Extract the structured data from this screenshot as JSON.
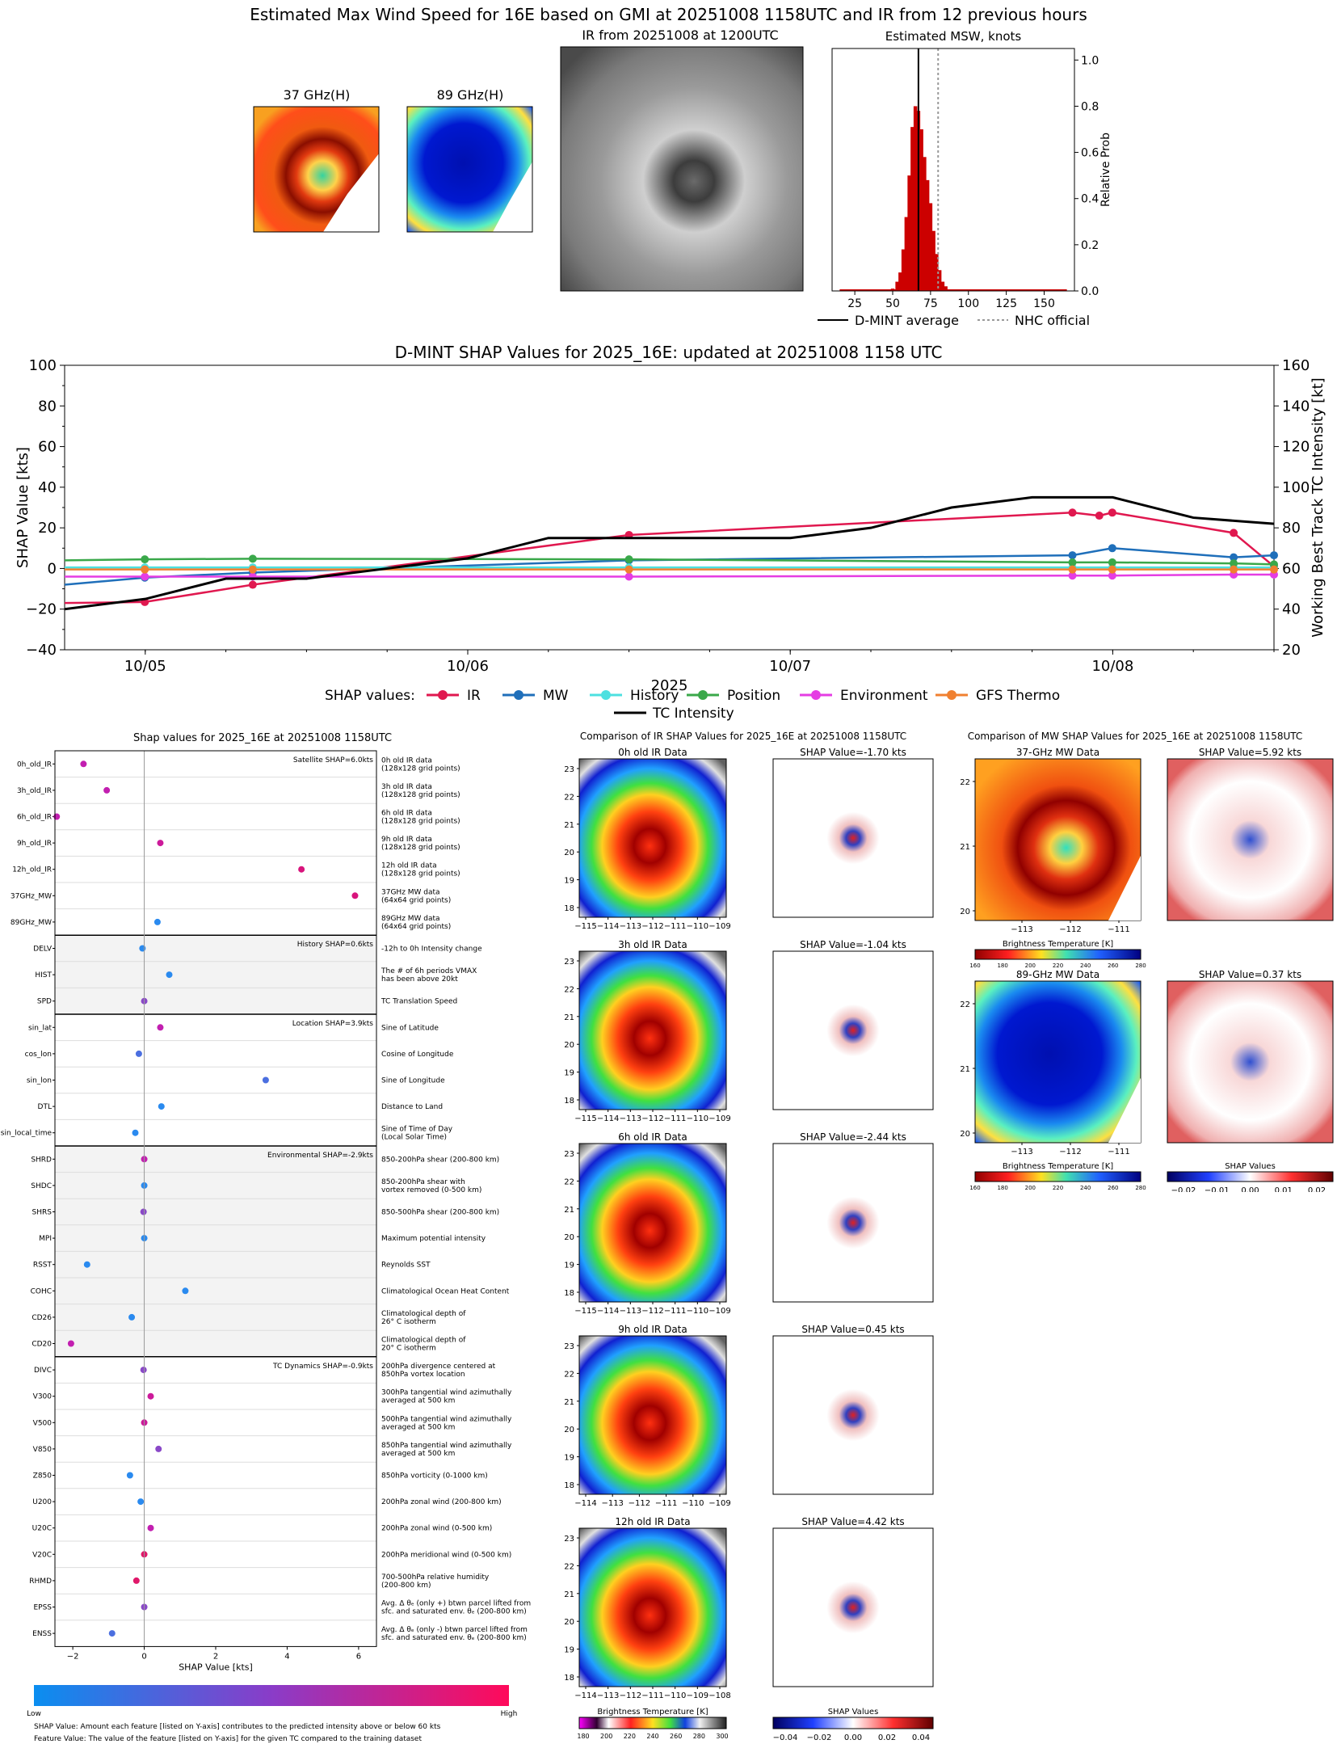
{
  "page": {
    "main_title": "Estimated Max Wind Speed for 16E based on GMI at 20251008 1158UTC and IR from 12 previous hours"
  },
  "top_panels": {
    "mw37_title": "37 GHz(H)",
    "mw89_title": "89 GHz(H)",
    "ir_title": "IR from 20251008 at 1200UTC",
    "hist_title": "Estimated MSW, knots",
    "hist_ylabel": "Relative Prob",
    "hist_xticks": [
      "25",
      "50",
      "75",
      "100",
      "125",
      "150"
    ],
    "hist_yticks": [
      "0.0",
      "0.2",
      "0.4",
      "0.6",
      "0.8",
      "1.0"
    ],
    "legend": [
      "D-MINT average",
      "NHC official"
    ]
  },
  "chart_data": [
    {
      "type": "bar",
      "title": "Estimated MSW, knots",
      "ylabel": "Relative Prob",
      "xlim": [
        10,
        170
      ],
      "ylim": [
        0,
        1.05
      ],
      "bins": [
        {
          "x": 50,
          "v": 0.01
        },
        {
          "x": 53,
          "v": 0.04
        },
        {
          "x": 55,
          "v": 0.08
        },
        {
          "x": 57,
          "v": 0.18
        },
        {
          "x": 59,
          "v": 0.32
        },
        {
          "x": 61,
          "v": 0.5
        },
        {
          "x": 63,
          "v": 0.71
        },
        {
          "x": 65,
          "v": 0.8
        },
        {
          "x": 67,
          "v": 0.78
        },
        {
          "x": 69,
          "v": 0.7
        },
        {
          "x": 71,
          "v": 0.58
        },
        {
          "x": 73,
          "v": 0.48
        },
        {
          "x": 75,
          "v": 0.38
        },
        {
          "x": 77,
          "v": 0.26
        },
        {
          "x": 79,
          "v": 0.16
        },
        {
          "x": 81,
          "v": 0.09
        },
        {
          "x": 83,
          "v": 0.04
        },
        {
          "x": 85,
          "v": 0.02
        }
      ],
      "dmint_average": 67,
      "nhc_official": 80
    },
    {
      "type": "line",
      "title": "D-MINT SHAP Values for 2025_16E: updated at 20251008 1158 UTC",
      "xlabel": "2025",
      "ylabel": "SHAP Value [kts]",
      "y2label": "Working Best Track TC Intensity [kt]",
      "xlim": [
        "2025-10-04 18:00",
        "2025-10-08 12:00"
      ],
      "ylim": [
        -40,
        100
      ],
      "y2lim": [
        20,
        160
      ],
      "xticks": [
        "10/05",
        "10/06",
        "10/07",
        "10/08"
      ],
      "yticks": [
        "−40",
        "−20",
        "0",
        "20",
        "40",
        "60",
        "80",
        "100"
      ],
      "y2ticks": [
        "20",
        "40",
        "60",
        "80",
        "100",
        "120",
        "140",
        "160"
      ],
      "series": [
        {
          "name": "IR",
          "color": "#e0184f",
          "x": [
            "10/04 18:00",
            "10/04 23:58",
            "10/05 08:00",
            "10/06 12:00",
            "10/07 21:00",
            "10/07 23:00",
            "10/07 23:58",
            "10/08 09:00",
            "10/08 12:00"
          ],
          "y": [
            -17,
            -16.5,
            -8,
            16.5,
            27.5,
            26,
            27.5,
            17.5,
            1
          ]
        },
        {
          "name": "MW",
          "color": "#1f6fba",
          "x": [
            "10/04 18:00",
            "10/04 23:58",
            "10/05 08:00",
            "10/06 12:00",
            "10/07 21:00",
            "10/07 23:58",
            "10/08 09:00",
            "10/08 12:00"
          ],
          "y": [
            -8,
            -4.5,
            -2,
            4,
            6.5,
            10,
            5.5,
            6.5
          ]
        },
        {
          "name": "History",
          "color": "#4de0e0",
          "x": [
            "10/04 18:00",
            "10/04 23:58",
            "10/05 08:00",
            "10/06 12:00",
            "10/07 21:00",
            "10/07 23:58",
            "10/08 09:00",
            "10/08 12:00"
          ],
          "y": [
            0.5,
            0.5,
            0.5,
            0.5,
            0.5,
            0.5,
            0.5,
            0.5
          ]
        },
        {
          "name": "Position",
          "color": "#3aa84a",
          "x": [
            "10/04 18:00",
            "10/04 23:58",
            "10/05 08:00",
            "10/06 12:00",
            "10/07 21:00",
            "10/07 23:58",
            "10/08 09:00",
            "10/08 12:00"
          ],
          "y": [
            4,
            4.5,
            4.8,
            4.5,
            3,
            3,
            2.5,
            2
          ]
        },
        {
          "name": "Environment",
          "color": "#e53de3",
          "x": [
            "10/04 18:00",
            "10/04 23:58",
            "10/05 08:00",
            "10/06 12:00",
            "10/07 21:00",
            "10/07 23:58",
            "10/08 09:00",
            "10/08 12:00"
          ],
          "y": [
            -4,
            -4,
            -4,
            -4,
            -3.5,
            -3.5,
            -3,
            -3
          ]
        },
        {
          "name": "GFS Thermo",
          "color": "#f08030",
          "x": [
            "10/04 18:00",
            "10/04 23:58",
            "10/05 08:00",
            "10/06 12:00",
            "10/07 21:00",
            "10/07 23:58",
            "10/08 09:00",
            "10/08 12:00"
          ],
          "y": [
            -0.5,
            -0.5,
            -0.5,
            -0.5,
            -0.5,
            -0.5,
            -0.5,
            -0.5
          ]
        },
        {
          "name": "TC Intensity",
          "color": "#000000",
          "axis": "right",
          "x": [
            "10/04 18:00",
            "10/05 00:00",
            "10/05 06:00",
            "10/05 12:00",
            "10/05 18:00",
            "10/06 00:00",
            "10/06 06:00",
            "10/06 12:00",
            "10/06 18:00",
            "10/07 00:00",
            "10/07 06:00",
            "10/07 12:00",
            "10/07 18:00",
            "10/08 00:00",
            "10/08 06:00",
            "10/08 12:00"
          ],
          "y": [
            40,
            45,
            55,
            55,
            60,
            65,
            75,
            75,
            75,
            75,
            80,
            90,
            95,
            95,
            85,
            82
          ]
        }
      ],
      "legend_prefix": "SHAP values:"
    },
    {
      "type": "scatter",
      "title": "Shap values for 2025_16E at 20251008 1158UTC",
      "xlabel": "SHAP Value [kts]",
      "xlim": [
        -2.5,
        6.5
      ],
      "xticks": [
        "−2",
        "0",
        "2",
        "4",
        "6"
      ],
      "groups": [
        {
          "label": "Satellite SHAP=6.0kts",
          "shaded": false,
          "rows": [
            {
              "name": "0h_old_IR",
              "desc": "0h old IR data\n(128x128 grid points)",
              "x": -1.7,
              "c": "#c21fb0"
            },
            {
              "name": "3h_old_IR",
              "desc": "3h old IR data\n(128x128 grid points)",
              "x": -1.05,
              "c": "#c21fb0"
            },
            {
              "name": "6h_old_IR",
              "desc": "6h old IR data\n(128x128 grid points)",
              "x": -2.45,
              "c": "#c21fb0"
            },
            {
              "name": "9h_old_IR",
              "desc": "9h old IR data\n(128x128 grid points)",
              "x": 0.45,
              "c": "#cc1a9a"
            },
            {
              "name": "12h_old_IR",
              "desc": "12h old IR data\n(128x128 grid points)",
              "x": 4.4,
              "c": "#d8147c"
            },
            {
              "name": "37GHz_MW",
              "desc": "37GHz MW data\n(64x64 grid points)",
              "x": 5.9,
              "c": "#d8147c"
            },
            {
              "name": "89GHz_MW",
              "desc": "89GHz MW data\n(64x64 grid points)",
              "x": 0.37,
              "c": "#2a8aef"
            }
          ]
        },
        {
          "label": "History SHAP=0.6kts",
          "shaded": true,
          "rows": [
            {
              "name": "DELV",
              "desc": "-12h to 0h Intensity change",
              "x": -0.05,
              "c": "#2a8aef"
            },
            {
              "name": "HIST",
              "desc": "The # of 6h periods VMAX\nhas been above 20kt",
              "x": 0.7,
              "c": "#2a8aef"
            },
            {
              "name": "SPD",
              "desc": "TC Translation Speed",
              "x": 0.0,
              "c": "#8a48c8"
            }
          ]
        },
        {
          "label": "Location SHAP=3.9kts",
          "shaded": false,
          "rows": [
            {
              "name": "sin_lat",
              "desc": "Sine of Latitude",
              "x": 0.45,
              "c": "#c21fb0"
            },
            {
              "name": "cos_lon",
              "desc": "Cosine of Longitude",
              "x": -0.15,
              "c": "#4b6fe0"
            },
            {
              "name": "sin_lon",
              "desc": "Sine of Longitude",
              "x": 3.4,
              "c": "#4b6fe0"
            },
            {
              "name": "DTL",
              "desc": "Distance to Land",
              "x": 0.48,
              "c": "#2a8aef"
            },
            {
              "name": "sin_local_time",
              "desc": "Sine of Time of Day\n(Local Solar Time)",
              "x": -0.25,
              "c": "#2a8aef"
            }
          ]
        },
        {
          "label": "Environmental SHAP=-2.9kts",
          "shaded": true,
          "rows": [
            {
              "name": "SHRD",
              "desc": "850-200hPa shear (200-800 km)",
              "x": 0.0,
              "c": "#c21fb0"
            },
            {
              "name": "SHDC",
              "desc": "850-200hPa shear with\nvortex removed (0-500 km)",
              "x": 0.0,
              "c": "#2a8aef"
            },
            {
              "name": "SHRS",
              "desc": "850-500hPa shear (200-800 km)",
              "x": -0.02,
              "c": "#8a48c8"
            },
            {
              "name": "MPI",
              "desc": "Maximum potential intensity",
              "x": 0.0,
              "c": "#2a8aef"
            },
            {
              "name": "RSST",
              "desc": "Reynolds SST",
              "x": -1.6,
              "c": "#2a8aef"
            },
            {
              "name": "COHC",
              "desc": "Climatological Ocean Heat Content",
              "x": 1.15,
              "c": "#2a8aef"
            },
            {
              "name": "CD26",
              "desc": "Climatological depth of\n26° C isotherm",
              "x": -0.35,
              "c": "#2a8aef"
            },
            {
              "name": "CD20",
              "desc": "Climatological depth of\n20° C isotherm",
              "x": -2.05,
              "c": "#c21fb0"
            }
          ]
        },
        {
          "label": "TC Dynamics SHAP=-0.9kts",
          "shaded": false,
          "rows": [
            {
              "name": "DIVC",
              "desc": "200hPa divergence centered at\n850hPa vortex location",
              "x": -0.02,
              "c": "#8a48c8"
            },
            {
              "name": "V300",
              "desc": "300hPa tangential wind azimuthally\naveraged at 500 km",
              "x": 0.18,
              "c": "#cc1a9a"
            },
            {
              "name": "V500",
              "desc": "500hPa tangential wind azimuthally\naveraged at 500 km",
              "x": 0.0,
              "c": "#cc1a9a"
            },
            {
              "name": "V850",
              "desc": "850hPa tangential wind azimuthally\naveraged at 500 km",
              "x": 0.4,
              "c": "#8a48c8"
            },
            {
              "name": "Z850",
              "desc": "850hPa vorticity (0-1000 km)",
              "x": -0.4,
              "c": "#2a8aef"
            },
            {
              "name": "U200",
              "desc": "200hPa zonal wind (200-800 km)",
              "x": -0.1,
              "c": "#2a8aef"
            },
            {
              "name": "U20C",
              "desc": "200hPa zonal wind (0-500 km)",
              "x": 0.18,
              "c": "#c21fb0"
            },
            {
              "name": "V20C",
              "desc": "200hPa meridional wind (0-500 km)",
              "x": 0.0,
              "c": "#e0186a"
            },
            {
              "name": "RHMD",
              "desc": "700-500hPa relative humidity\n(200-800 km)",
              "x": -0.22,
              "c": "#e0186a"
            },
            {
              "name": "EPSS",
              "desc": "Avg. Δ θₑ (only +) btwn parcel lifted from\nsfc. and saturated env. θₑ (200-800 km)",
              "x": 0.0,
              "c": "#8a48c8"
            },
            {
              "name": "ENSS",
              "desc": "Avg. Δ θₑ (only -) btwn parcel lifted from\nsfc. and saturated env. θₑ (200-800 km)",
              "x": -0.9,
              "c": "#4b6fe0"
            }
          ]
        }
      ]
    }
  ],
  "shap_colorbar": {
    "low": "Low",
    "high": "High",
    "note1": "SHAP Value: Amount each feature [listed on Y-axis] contributes to the predicted intensity above or below 60 kts",
    "note2": "Feature Value: The value of the feature [listed on Y-axis] for the given TC compared to the training dataset"
  },
  "ir_comparison": {
    "title": "Comparison of IR SHAP Values for 2025_16E at 20251008 1158UTC",
    "rows": [
      {
        "label": "0h old IR Data",
        "shap": "SHAP Value=-1.70 kts",
        "xticks": [
          "−115",
          "−114",
          "−113",
          "−112",
          "−111",
          "−110",
          "−109"
        ]
      },
      {
        "label": "3h old IR Data",
        "shap": "SHAP Value=-1.04 kts",
        "xticks": [
          "−115",
          "−114",
          "−113",
          "−112",
          "−111",
          "−110",
          "−109"
        ]
      },
      {
        "label": "6h old IR Data",
        "shap": "SHAP Value=-2.44 kts",
        "xticks": [
          "−115",
          "−114",
          "−113",
          "−112",
          "−111",
          "−110",
          "−109"
        ]
      },
      {
        "label": "9h old IR Data",
        "shap": "SHAP Value=0.45 kts",
        "xticks": [
          "−114",
          "−113",
          "−112",
          "−111",
          "−110",
          "−109"
        ]
      },
      {
        "label": "12h old IR Data",
        "shap": "SHAP Value=4.42 kts",
        "xticks": [
          "−114",
          "−113",
          "−112",
          "−111",
          "−110",
          "−109",
          "−108"
        ]
      }
    ],
    "yticks": [
      "18",
      "19",
      "20",
      "21",
      "22",
      "23"
    ],
    "bt_label": "Brightness Temperature [K]",
    "bt_ticks": [
      "180",
      "200",
      "220",
      "240",
      "260",
      "280",
      "300"
    ],
    "sv_label": "SHAP Values",
    "sv_ticks": [
      "−0.04",
      "−0.02",
      "0.00",
      "0.02",
      "0.04"
    ]
  },
  "mw_comparison": {
    "title": "Comparison of MW SHAP Values for 2025_16E at 20251008 1158UTC",
    "rows": [
      {
        "label": "37-GHz MW Data",
        "shap": "SHAP Value=5.92 kts"
      },
      {
        "label": "89-GHz MW Data",
        "shap": "SHAP Value=0.37 kts"
      }
    ],
    "yticks": [
      "20",
      "21",
      "22"
    ],
    "xticks": [
      "−113",
      "−112",
      "−111"
    ],
    "bt_label": "Brightness Temperature [K]",
    "bt_ticks": [
      "160",
      "180",
      "200",
      "220",
      "240",
      "260",
      "280"
    ],
    "sv_label": "SHAP Values",
    "sv_ticks": [
      "−0.02",
      "−0.01",
      "0.00",
      "0.01",
      "0.02"
    ]
  }
}
